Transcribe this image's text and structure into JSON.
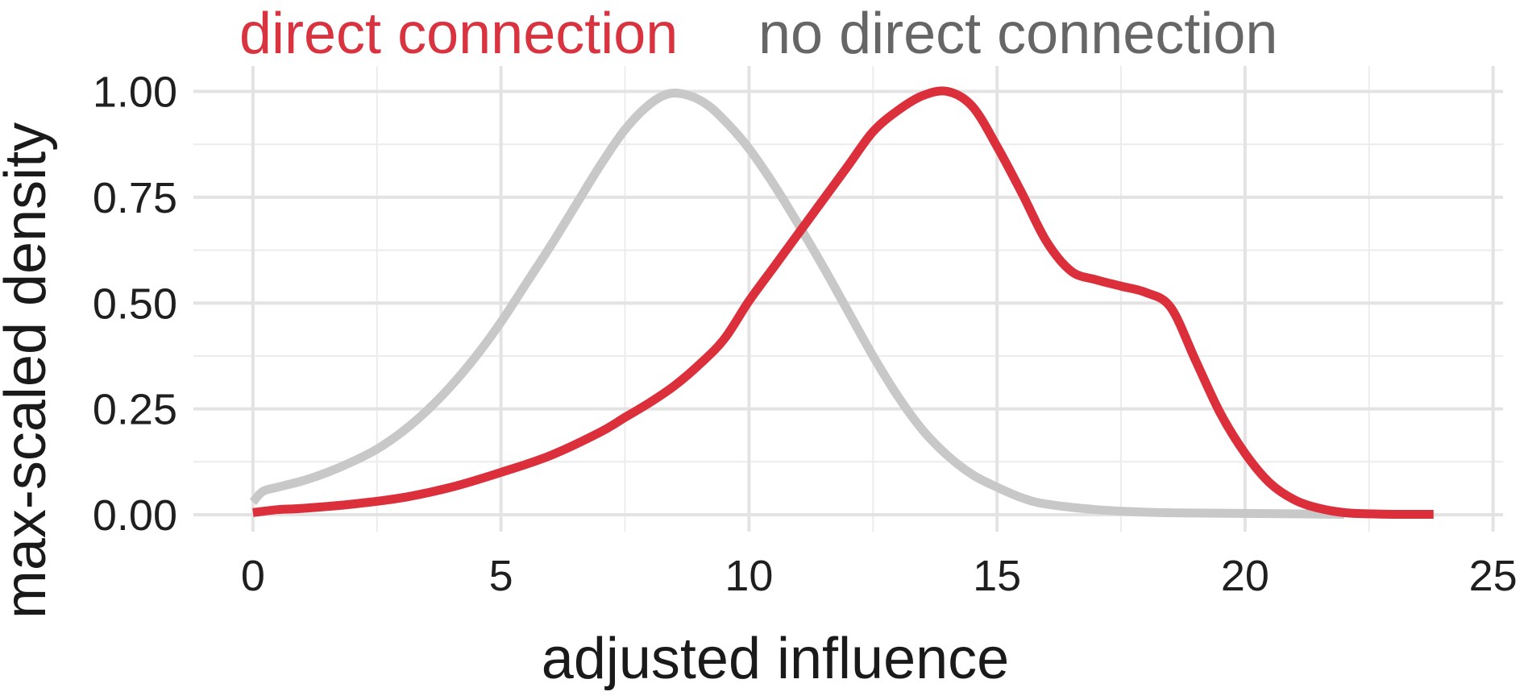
{
  "chart_data": {
    "type": "line",
    "title": "",
    "xlabel": "adjusted influence",
    "ylabel": "max-scaled density",
    "xlim": [
      -1.2,
      25.2
    ],
    "ylim": [
      -0.04,
      1.06
    ],
    "x_ticks": [
      0,
      5,
      10,
      15,
      20,
      25
    ],
    "x_tick_labels": [
      "0",
      "5",
      "10",
      "15",
      "20",
      "25"
    ],
    "y_ticks": [
      0,
      0.25,
      0.5,
      0.75,
      1
    ],
    "y_tick_labels": [
      "0.00",
      "0.25",
      "0.50",
      "0.75",
      "1.00"
    ],
    "grid": true,
    "legend_position": "top",
    "series": [
      {
        "name": "no direct connection",
        "color": "#c8c8c8",
        "label_color": "#666666",
        "points": [
          [
            0,
            0.03
          ],
          [
            0.2,
            0.055
          ],
          [
            0.5,
            0.065
          ],
          [
            1,
            0.08
          ],
          [
            1.5,
            0.1
          ],
          [
            2,
            0.125
          ],
          [
            2.5,
            0.155
          ],
          [
            3,
            0.195
          ],
          [
            3.5,
            0.245
          ],
          [
            4,
            0.305
          ],
          [
            4.5,
            0.375
          ],
          [
            5,
            0.455
          ],
          [
            5.5,
            0.545
          ],
          [
            6,
            0.635
          ],
          [
            6.5,
            0.73
          ],
          [
            7,
            0.825
          ],
          [
            7.5,
            0.91
          ],
          [
            8,
            0.97
          ],
          [
            8.4,
            0.995
          ],
          [
            8.8,
            0.99
          ],
          [
            9.2,
            0.965
          ],
          [
            9.6,
            0.92
          ],
          [
            10,
            0.865
          ],
          [
            10.5,
            0.78
          ],
          [
            11,
            0.685
          ],
          [
            11.5,
            0.585
          ],
          [
            12,
            0.48
          ],
          [
            12.5,
            0.375
          ],
          [
            13,
            0.28
          ],
          [
            13.5,
            0.2
          ],
          [
            14,
            0.14
          ],
          [
            14.5,
            0.095
          ],
          [
            15,
            0.065
          ],
          [
            15.5,
            0.04
          ],
          [
            16,
            0.025
          ],
          [
            17,
            0.012
          ],
          [
            18,
            0.006
          ],
          [
            19,
            0.004
          ],
          [
            20,
            0.003
          ],
          [
            21,
            0.002
          ],
          [
            22,
            0.001
          ]
        ]
      },
      {
        "name": "direct connection",
        "color": "#dc2f3c",
        "label_color": "#d8333f",
        "points": [
          [
            0,
            0.005
          ],
          [
            0.5,
            0.012
          ],
          [
            1,
            0.015
          ],
          [
            2,
            0.025
          ],
          [
            3,
            0.04
          ],
          [
            4,
            0.065
          ],
          [
            5,
            0.1
          ],
          [
            6,
            0.14
          ],
          [
            7,
            0.195
          ],
          [
            7.5,
            0.23
          ],
          [
            8,
            0.265
          ],
          [
            8.5,
            0.305
          ],
          [
            9,
            0.355
          ],
          [
            9.5,
            0.415
          ],
          [
            10,
            0.505
          ],
          [
            10.5,
            0.585
          ],
          [
            11,
            0.665
          ],
          [
            11.5,
            0.745
          ],
          [
            12,
            0.825
          ],
          [
            12.5,
            0.905
          ],
          [
            13,
            0.955
          ],
          [
            13.5,
            0.99
          ],
          [
            14,
            1.0
          ],
          [
            14.5,
            0.965
          ],
          [
            15,
            0.87
          ],
          [
            15.5,
            0.76
          ],
          [
            16,
            0.645
          ],
          [
            16.5,
            0.575
          ],
          [
            17,
            0.555
          ],
          [
            17.5,
            0.54
          ],
          [
            18,
            0.525
          ],
          [
            18.5,
            0.49
          ],
          [
            19,
            0.365
          ],
          [
            19.5,
            0.24
          ],
          [
            20,
            0.145
          ],
          [
            20.5,
            0.075
          ],
          [
            21,
            0.035
          ],
          [
            21.5,
            0.015
          ],
          [
            22,
            0.005
          ],
          [
            22.5,
            0.002
          ],
          [
            23,
            0.001
          ],
          [
            23.8,
            0.001
          ]
        ]
      }
    ]
  }
}
